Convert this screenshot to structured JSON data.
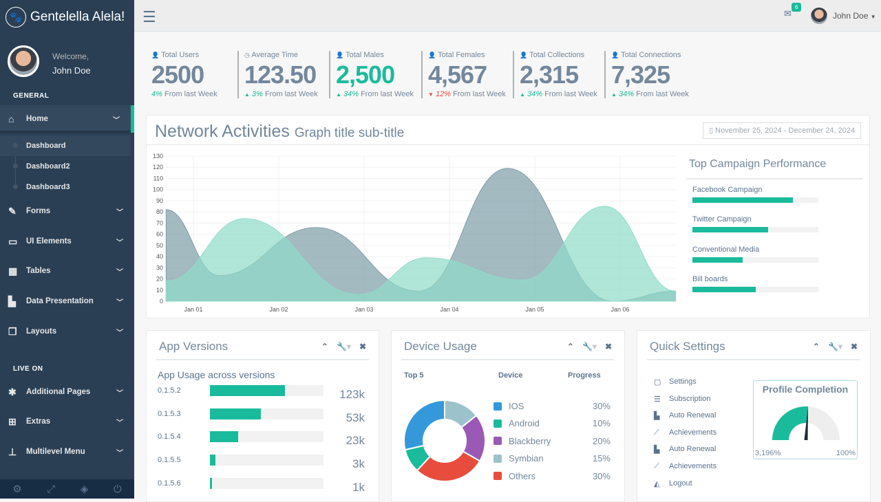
{
  "brand": {
    "name": "Gentelella Alela!",
    "icon": "paw-icon"
  },
  "profile": {
    "welcome": "Welcome,",
    "name": "John Doe"
  },
  "sidebar": {
    "general_label": "GENERAL",
    "live_label": "LIVE ON",
    "home": {
      "label": "Home",
      "icon": "home-icon"
    },
    "home_sub": [
      "Dashboard",
      "Dashboard2",
      "Dashboard3"
    ],
    "items": [
      {
        "label": "Forms",
        "icon": "edit-icon"
      },
      {
        "label": "UI Elements",
        "icon": "desktop-icon"
      },
      {
        "label": "Tables",
        "icon": "table-icon"
      },
      {
        "label": "Data Presentation",
        "icon": "bar-chart-icon"
      },
      {
        "label": "Layouts",
        "icon": "clone-icon"
      }
    ],
    "live_items": [
      {
        "label": "Additional Pages",
        "icon": "bug-icon"
      },
      {
        "label": "Extras",
        "icon": "windows-icon"
      },
      {
        "label": "Multilevel Menu",
        "icon": "sitemap-icon"
      }
    ],
    "footer_icons": [
      "settings-icon",
      "fullscreen-icon",
      "lock-icon",
      "power-icon"
    ]
  },
  "topnav": {
    "mail_count": "6",
    "user": "John Doe"
  },
  "stats": [
    {
      "title": "Total Users",
      "value": "2500",
      "change": "4%",
      "suffix": " From last Week",
      "dir": "none",
      "icon": "user-icon"
    },
    {
      "title": "Average Time",
      "value": "123.50",
      "change": "3%",
      "suffix": " From last Week",
      "dir": "up",
      "icon": "clock-icon"
    },
    {
      "title": "Total Males",
      "value": "2,500",
      "change": "34%",
      "suffix": " From last Week",
      "dir": "up",
      "icon": "user-icon",
      "green": true
    },
    {
      "title": "Total Females",
      "value": "4,567",
      "change": "12%",
      "suffix": " From last Week",
      "dir": "down",
      "icon": "user-icon"
    },
    {
      "title": "Total Collections",
      "value": "2,315",
      "change": "34%",
      "suffix": " From last Week",
      "dir": "up",
      "icon": "user-icon"
    },
    {
      "title": "Total Connections",
      "value": "7,325",
      "change": "34%",
      "suffix": " From last Week",
      "dir": "up",
      "icon": "user-icon"
    }
  ],
  "network": {
    "title": "Network Activities",
    "subtitle": "Graph title sub-title",
    "date_range": "November 25, 2024 - December 24, 2024"
  },
  "chart_data": {
    "type": "area",
    "title": "Network Activities",
    "ylim": [
      0,
      130
    ],
    "yticks": [
      0,
      10,
      20,
      30,
      40,
      50,
      60,
      70,
      80,
      90,
      100,
      110,
      120,
      130
    ],
    "xticks": [
      {
        "x": 1,
        "label": "Jan 01"
      },
      {
        "x": 2,
        "label": "Jan 02"
      },
      {
        "x": 3,
        "label": "Jan 03"
      },
      {
        "x": 4,
        "label": "Jan 04"
      },
      {
        "x": 5,
        "label": "Jan 05"
      },
      {
        "x": 6,
        "label": "Jan 06"
      }
    ],
    "xlim": [
      0.68,
      6.65
    ],
    "series": [
      {
        "name": "series-gray",
        "color": "#7E9CA6",
        "x": [
          0.68,
          1.3,
          2.44,
          3.64,
          4.68,
          5.91,
          6.65
        ],
        "values": [
          82,
          23,
          66,
          9,
          119,
          0,
          9
        ]
      },
      {
        "name": "series-teal",
        "color": "#8FDCC8",
        "x": [
          0.68,
          1.6,
          2.94,
          3.73,
          4.86,
          5.82,
          6.65
        ],
        "values": [
          18,
          74,
          6,
          39,
          19,
          85,
          9
        ]
      }
    ]
  },
  "campaigns": {
    "title": "Top Campaign Performance",
    "items": [
      {
        "label": "Facebook Campaign",
        "pct": 80
      },
      {
        "label": "Twitter Campaign",
        "pct": 60
      },
      {
        "label": "Conventional Media",
        "pct": 40
      },
      {
        "label": "Bill boards",
        "pct": 50
      }
    ]
  },
  "app_versions": {
    "title": "App Versions",
    "subtitle": "App Usage across versions",
    "rows": [
      {
        "v": "0.1.5.2",
        "pct": 66,
        "count": "123k"
      },
      {
        "v": "0.1.5.3",
        "pct": 45,
        "count": "53k"
      },
      {
        "v": "0.1.5.4",
        "pct": 25,
        "count": "23k"
      },
      {
        "v": "0.1.5.5",
        "pct": 5,
        "count": "3k"
      },
      {
        "v": "0.1.5.6",
        "pct": 2,
        "count": "1k"
      }
    ]
  },
  "device_usage": {
    "title": "Device Usage",
    "col1": "Top 5",
    "col2": "Device",
    "col3": "Progress",
    "items": [
      {
        "label": "IOS",
        "pct": "30%",
        "value": 30,
        "color": "#3498DB"
      },
      {
        "label": "Android",
        "pct": "10%",
        "value": 10,
        "color": "#1ABB9C"
      },
      {
        "label": "Blackberry",
        "pct": "20%",
        "value": 20,
        "color": "#9B59B6"
      },
      {
        "label": "Symbian",
        "pct": "15%",
        "value": 15,
        "color": "#9CC2CB"
      },
      {
        "label": "Others",
        "pct": "30%",
        "value": 30,
        "color": "#E74C3C"
      }
    ],
    "donut_order": [
      "Symbian",
      "Blackberry",
      "Others",
      "Android",
      "IOS"
    ]
  },
  "quick_settings": {
    "title": "Quick Settings",
    "items": [
      {
        "label": "Settings",
        "icon": "calendar-icon"
      },
      {
        "label": "Subscription",
        "icon": "bars-icon"
      },
      {
        "label": "Auto Renewal",
        "icon": "bar-chart-icon"
      },
      {
        "label": "Achievements",
        "icon": "line-chart-icon"
      },
      {
        "label": "Auto Renewal",
        "icon": "bar-chart-icon"
      },
      {
        "label": "Achievements",
        "icon": "line-chart-icon"
      },
      {
        "label": "Logout",
        "icon": "area-chart-icon"
      }
    ],
    "profile": {
      "title": "Profile Completion",
      "min_label": "3,196%",
      "max_label": "100%",
      "fill": 0.52
    }
  }
}
